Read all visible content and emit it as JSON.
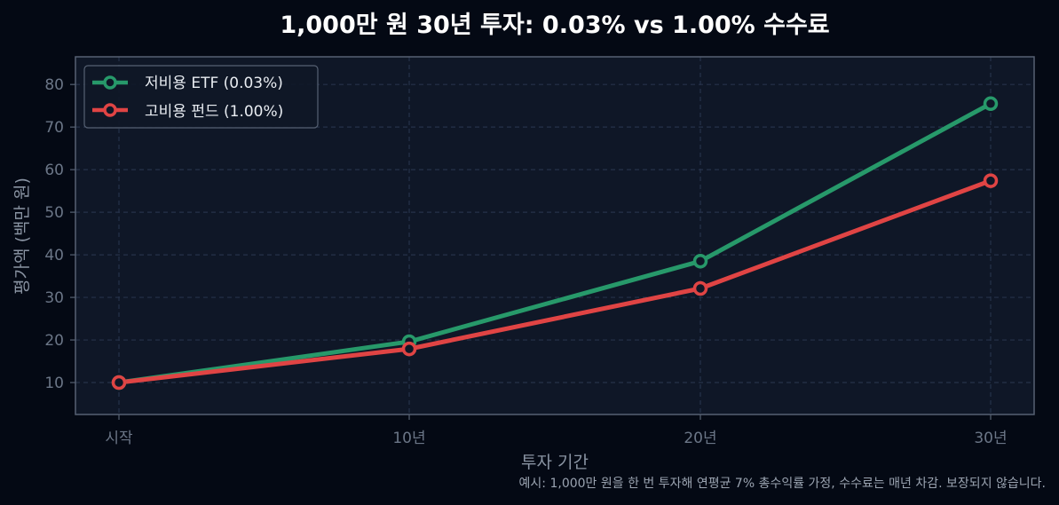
{
  "chart_data": {
    "type": "line",
    "title": "1,000만 원 30년 투자: 0.03% vs 1.00% 수수료",
    "xlabel": "투자 기간",
    "ylabel": "평가액 (백만 원)",
    "categories": [
      "시작",
      "10년",
      "20년",
      "30년"
    ],
    "yticks": [
      10,
      20,
      30,
      40,
      50,
      60,
      70,
      80
    ],
    "ylim": [
      2.5,
      86.5
    ],
    "grid": true,
    "legend_position": "top-left",
    "series": [
      {
        "name": "저비용 ETF (0.03%)",
        "color": "#27996a",
        "values": [
          10.0,
          19.6,
          38.5,
          75.5
        ]
      },
      {
        "name": "고비용 펀드 (1.00%)",
        "color": "#e04444",
        "values": [
          10.0,
          17.9,
          32.1,
          57.4
        ]
      }
    ],
    "note": "예시: 1,000만 원을 한 번 투자해 연평균 7% 총수익률 가정, 수수료는 매년 차감. 보장되지 않습니다."
  },
  "colors": {
    "background": "#040914",
    "plot_background": "#0f1727",
    "grid": "#26324a",
    "frame": "#566173"
  }
}
